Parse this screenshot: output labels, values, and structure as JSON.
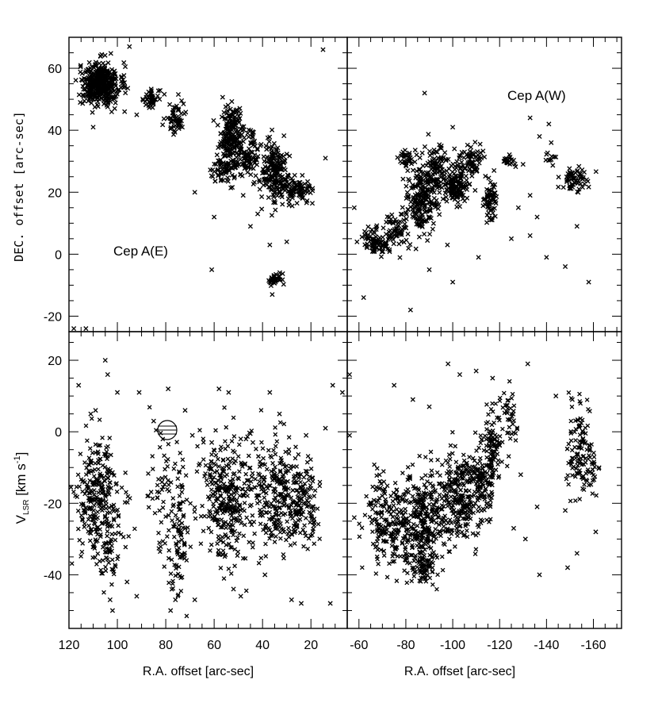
{
  "chart_data": [
    {
      "panel": "top-left",
      "type": "scatter",
      "annotation": "Cep A(E)",
      "xlabel": "",
      "ylabel": "DEC. offset [arc-sec]",
      "xlim": [
        120,
        5
      ],
      "ylim": [
        -25,
        70
      ],
      "xticks": [],
      "yticks": [
        "60",
        "40",
        "20",
        "0",
        "-20"
      ],
      "clusters": [
        {
          "x": 107,
          "y": 55,
          "sx": 4,
          "sy": 3.5,
          "n": 420
        },
        {
          "x": 86,
          "y": 50,
          "sx": 2,
          "sy": 1.5,
          "n": 45
        },
        {
          "x": 76,
          "y": 44,
          "sx": 1.8,
          "sy": 2.5,
          "n": 55
        },
        {
          "x": 53,
          "y": 38,
          "sx": 2.5,
          "sy": 5,
          "n": 200
        },
        {
          "x": 46,
          "y": 33,
          "sx": 2,
          "sy": 4,
          "n": 80
        },
        {
          "x": 56,
          "y": 27,
          "sx": 3,
          "sy": 2,
          "n": 60
        },
        {
          "x": 35,
          "y": 26,
          "sx": 3,
          "sy": 5,
          "n": 200
        },
        {
          "x": 26,
          "y": 21,
          "sx": 3,
          "sy": 2,
          "n": 90
        },
        {
          "x": 35,
          "y": -8,
          "sx": 1.5,
          "sy": 1,
          "n": 35
        }
      ],
      "points": [
        [
          95,
          67
        ],
        [
          97,
          46
        ],
        [
          110,
          41
        ],
        [
          92,
          45
        ],
        [
          68,
          20
        ],
        [
          48,
          19
        ],
        [
          60,
          12
        ],
        [
          42,
          13
        ],
        [
          15,
          66
        ],
        [
          14,
          31
        ],
        [
          61,
          -5
        ],
        [
          30,
          4
        ],
        [
          36,
          -13
        ],
        [
          37,
          3
        ],
        [
          45,
          9
        ],
        [
          118,
          -24
        ],
        [
          113,
          -24
        ],
        [
          108,
          -25
        ]
      ]
    },
    {
      "panel": "top-right",
      "type": "scatter",
      "annotation": "Cep A(W)",
      "xlabel": "",
      "ylabel": "",
      "xlim": [
        -55,
        -172
      ],
      "ylim": [
        -25,
        70
      ],
      "xticks": [],
      "yticks": [],
      "clusters": [
        {
          "x": -67,
          "y": 4,
          "sx": 3,
          "sy": 2,
          "n": 80
        },
        {
          "x": -76,
          "y": 8,
          "sx": 3,
          "sy": 3,
          "n": 60
        },
        {
          "x": -86,
          "y": 17,
          "sx": 3,
          "sy": 5,
          "n": 160
        },
        {
          "x": -93,
          "y": 25,
          "sx": 4,
          "sy": 5,
          "n": 160
        },
        {
          "x": -102,
          "y": 22,
          "sx": 3,
          "sy": 3,
          "n": 110
        },
        {
          "x": -108,
          "y": 30,
          "sx": 3,
          "sy": 3,
          "n": 70
        },
        {
          "x": -116,
          "y": 16,
          "sx": 1.5,
          "sy": 4,
          "n": 60
        },
        {
          "x": -80,
          "y": 31,
          "sx": 2,
          "sy": 1.5,
          "n": 30
        },
        {
          "x": -124,
          "y": 30,
          "sx": 1.5,
          "sy": 1,
          "n": 20
        },
        {
          "x": -153,
          "y": 24,
          "sx": 3,
          "sy": 2,
          "n": 60
        },
        {
          "x": -141,
          "y": 31,
          "sx": 1.2,
          "sy": 1,
          "n": 10
        }
      ],
      "points": [
        [
          -88,
          52
        ],
        [
          -133,
          44
        ],
        [
          -141,
          42
        ],
        [
          -142,
          36
        ],
        [
          -137,
          38
        ],
        [
          -130,
          29
        ],
        [
          -133,
          19
        ],
        [
          -128,
          15
        ],
        [
          -153,
          9
        ],
        [
          -136,
          12
        ],
        [
          -111,
          -1
        ],
        [
          -100,
          -9
        ],
        [
          -90,
          -5
        ],
        [
          -82,
          -18
        ],
        [
          -62,
          -14
        ],
        [
          -58,
          15
        ],
        [
          -100,
          41
        ],
        [
          -125,
          5
        ],
        [
          -148,
          -4
        ],
        [
          -158,
          -9
        ],
        [
          -133,
          6
        ],
        [
          -140,
          -1
        ]
      ]
    },
    {
      "panel": "bottom-left",
      "type": "scatter",
      "xlabel": "R.A. offset [arc-sec]",
      "ylabel": "V_LSR [km s^-1]",
      "xlim": [
        120,
        5
      ],
      "ylim": [
        -55,
        28
      ],
      "xticks": [
        "120",
        "100",
        "80",
        "60",
        "40",
        "20"
      ],
      "yticks": [
        "20",
        "0",
        "-20",
        "-40"
      ],
      "clusters": [
        {
          "x": 108,
          "y": -19,
          "sx": 5,
          "sy": 8,
          "n": 280
        },
        {
          "x": 104,
          "y": -35,
          "sx": 2,
          "sy": 4,
          "n": 40
        },
        {
          "x": 81,
          "y": -18,
          "sx": 3,
          "sy": 9,
          "n": 60
        },
        {
          "x": 74,
          "y": -27,
          "sx": 2,
          "sy": 10,
          "n": 90
        },
        {
          "x": 55,
          "y": -18,
          "sx": 5,
          "sy": 9,
          "n": 320
        },
        {
          "x": 33,
          "y": -18,
          "sx": 6,
          "sy": 8,
          "n": 300
        },
        {
          "x": 22,
          "y": -20,
          "sx": 3,
          "sy": 5,
          "n": 80
        }
      ],
      "points": [
        [
          105,
          20
        ],
        [
          104,
          16
        ],
        [
          120,
          14
        ],
        [
          116,
          13
        ],
        [
          111,
          5
        ],
        [
          109,
          6
        ],
        [
          100,
          11
        ],
        [
          91,
          11
        ],
        [
          85,
          3
        ],
        [
          79,
          12
        ],
        [
          72,
          6
        ],
        [
          69,
          -1
        ],
        [
          58,
          12
        ],
        [
          54,
          11
        ],
        [
          49,
          -2
        ],
        [
          37,
          11
        ],
        [
          22,
          -1
        ],
        [
          14,
          1
        ],
        [
          11,
          13
        ],
        [
          7,
          11
        ],
        [
          103,
          -47
        ],
        [
          102,
          -50
        ],
        [
          96,
          -42
        ],
        [
          92,
          -46
        ],
        [
          76,
          -47
        ],
        [
          78,
          -50
        ],
        [
          68,
          -47
        ],
        [
          28,
          -47
        ],
        [
          24,
          -48
        ],
        [
          12,
          -48
        ],
        [
          33,
          5
        ],
        [
          44,
          -3
        ],
        [
          61,
          -3
        ],
        [
          39,
          -40
        ],
        [
          49,
          -46
        ],
        [
          52,
          -44
        ]
      ]
    },
    {
      "panel": "bottom-right",
      "type": "scatter",
      "xlabel": "R.A. offset [arc-sec]",
      "ylabel": "",
      "xlim": [
        -55,
        -172
      ],
      "ylim": [
        -55,
        28
      ],
      "xticks": [
        "-60",
        "-80",
        "-100",
        "-120",
        "-140",
        "-160"
      ],
      "yticks": [],
      "clusters": [
        {
          "x": -72,
          "y": -25,
          "sx": 5,
          "sy": 6,
          "n": 200
        },
        {
          "x": -87,
          "y": -25,
          "sx": 5,
          "sy": 7,
          "n": 300
        },
        {
          "x": -102,
          "y": -18,
          "sx": 5,
          "sy": 6,
          "n": 250
        },
        {
          "x": -113,
          "y": -14,
          "sx": 3,
          "sy": 5,
          "n": 120
        },
        {
          "x": -117,
          "y": -3,
          "sx": 2,
          "sy": 5,
          "n": 80
        },
        {
          "x": -124,
          "y": 4,
          "sx": 2,
          "sy": 4,
          "n": 40
        },
        {
          "x": -154,
          "y": -5,
          "sx": 3,
          "sy": 6,
          "n": 100
        },
        {
          "x": -159,
          "y": -12,
          "sx": 1.5,
          "sy": 4,
          "n": 30
        },
        {
          "x": -88,
          "y": -38,
          "sx": 2,
          "sy": 2,
          "n": 40
        }
      ],
      "points": [
        [
          -56,
          16
        ],
        [
          -56,
          -1
        ],
        [
          -58,
          -24
        ],
        [
          -75,
          13
        ],
        [
          -83,
          9
        ],
        [
          -90,
          7
        ],
        [
          -98,
          19
        ],
        [
          -103,
          16
        ],
        [
          -110,
          17
        ],
        [
          -117,
          15
        ],
        [
          -132,
          19
        ],
        [
          -137,
          -40
        ],
        [
          -149,
          -38
        ],
        [
          -153,
          -34
        ],
        [
          -144,
          10
        ],
        [
          -151,
          9
        ],
        [
          -136,
          -21
        ],
        [
          -126,
          -27
        ],
        [
          -148,
          -22
        ],
        [
          -161,
          -28
        ],
        [
          -129,
          -12
        ],
        [
          -131,
          -30
        ]
      ]
    }
  ]
}
